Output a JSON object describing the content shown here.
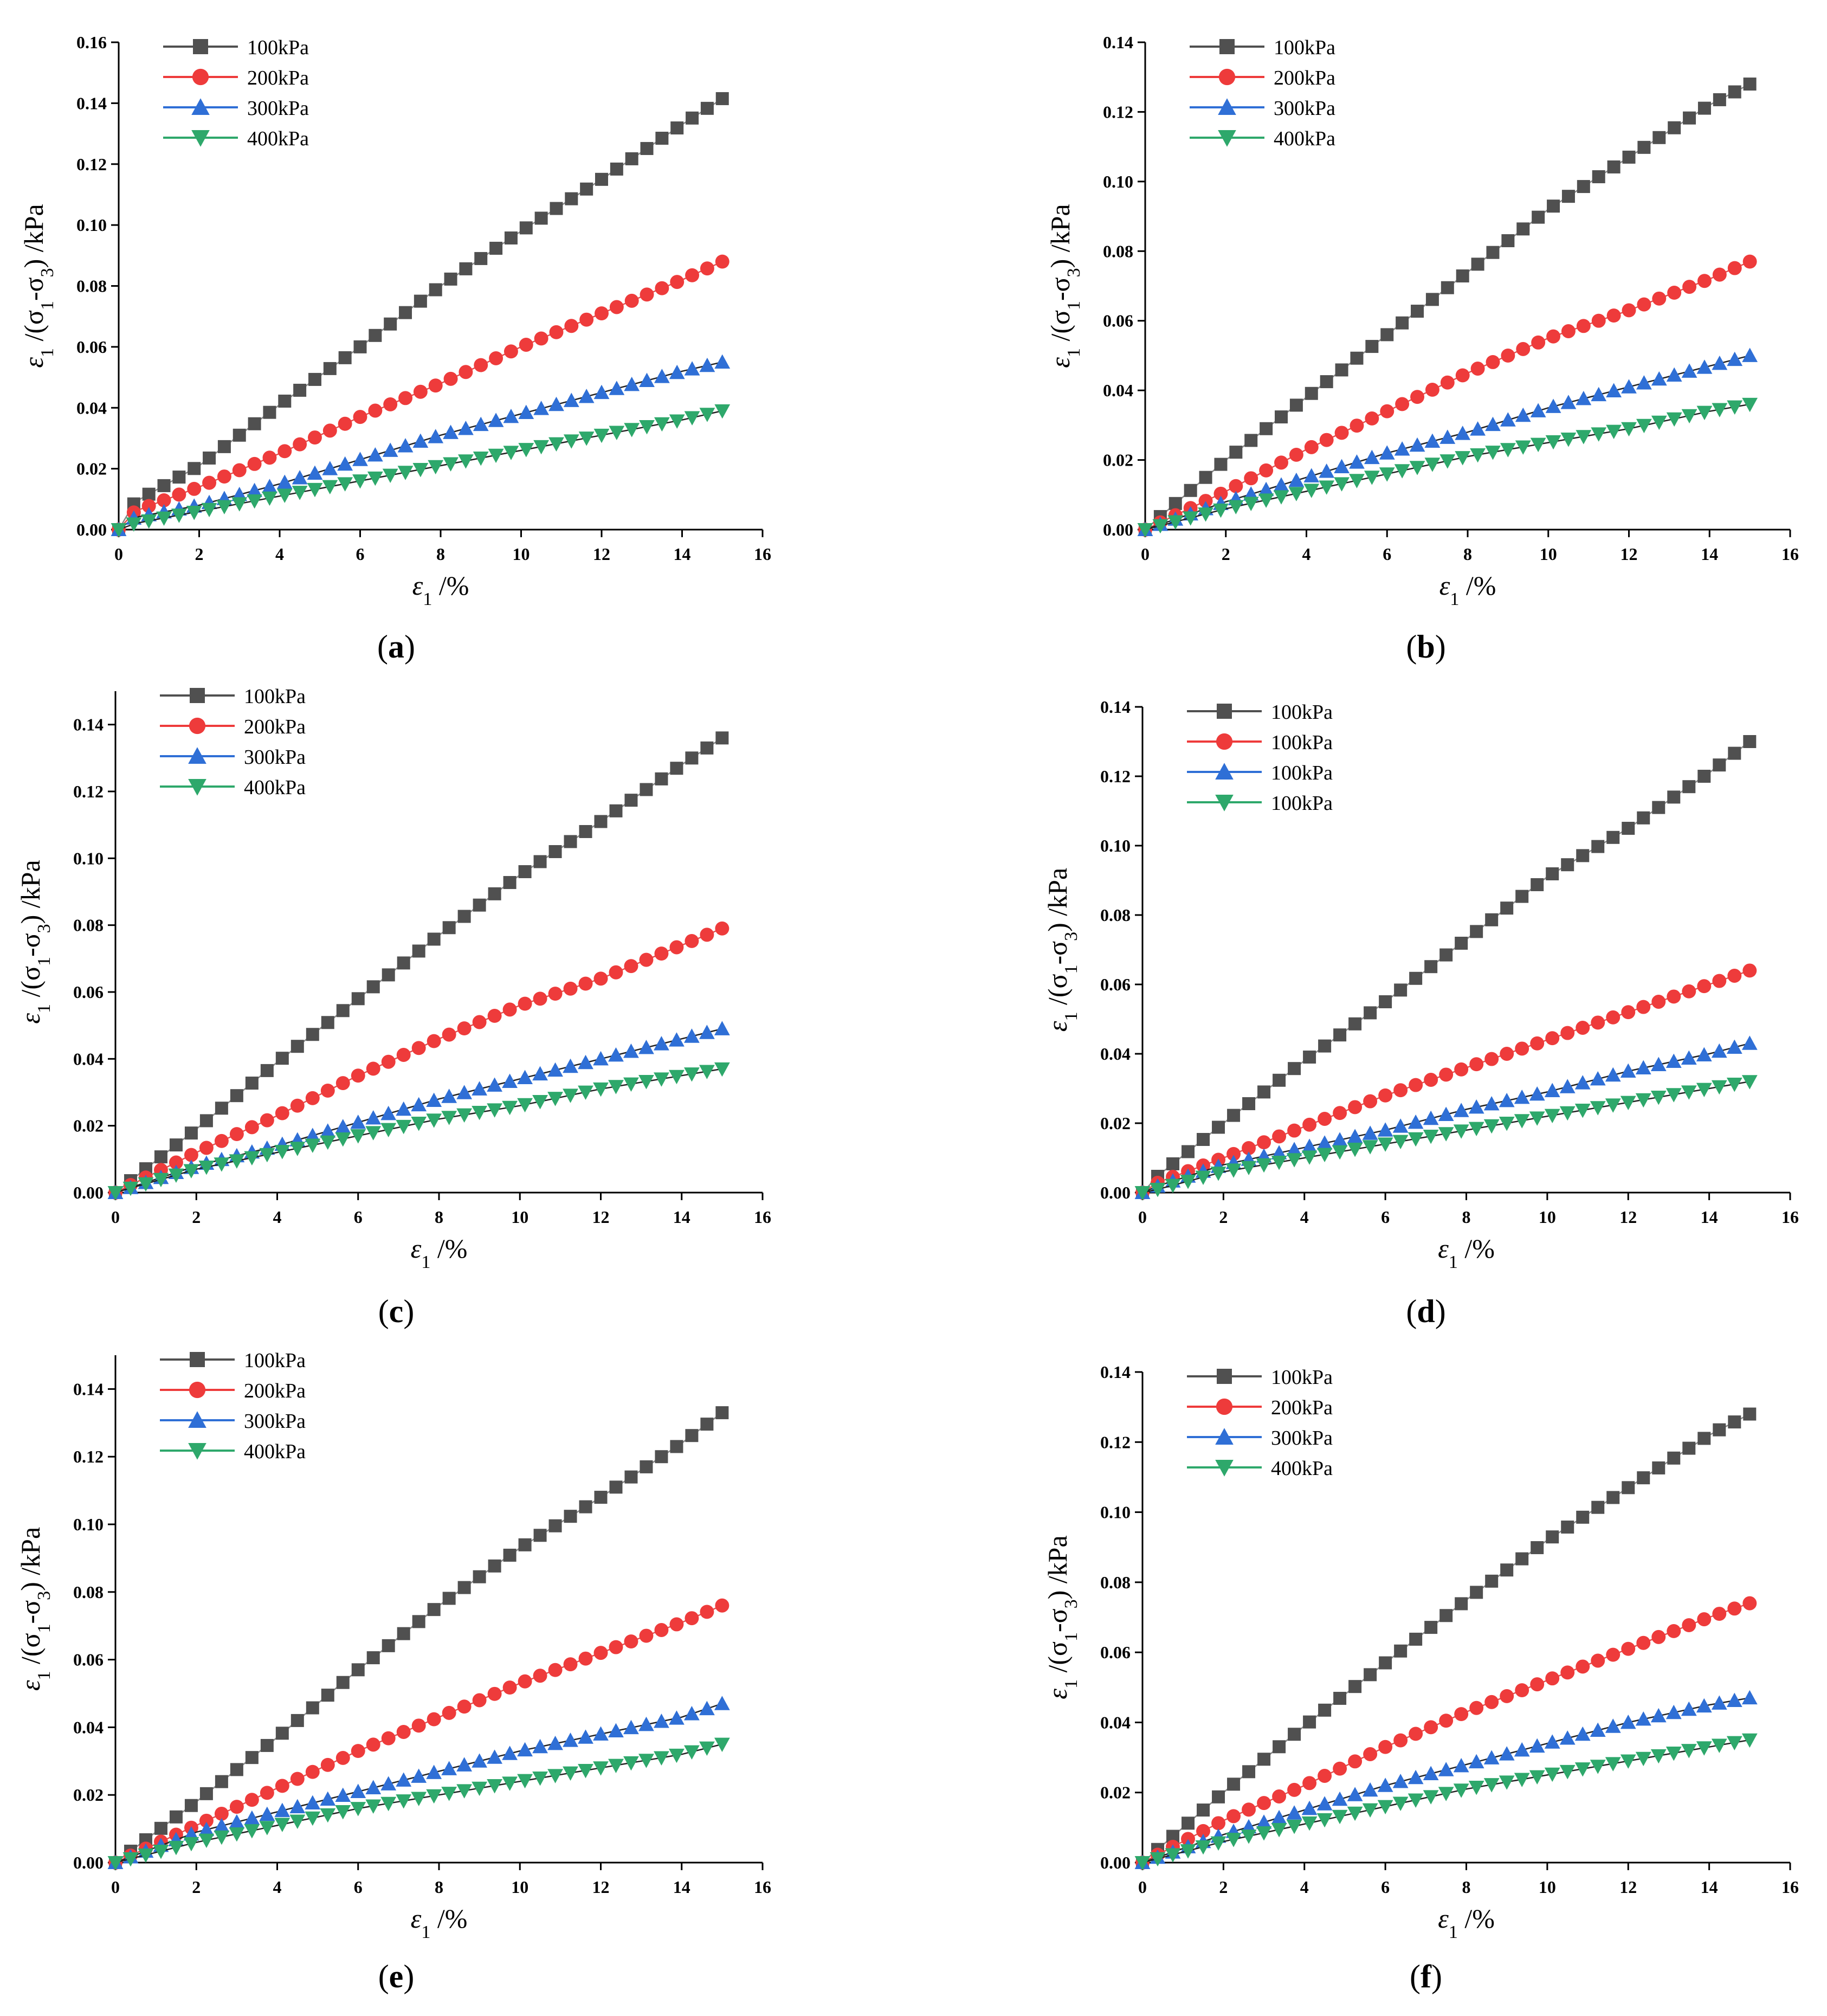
{
  "figure": {
    "panels": [
      {
        "label": "a"
      },
      {
        "label": "b"
      },
      {
        "label": "c"
      },
      {
        "label": "d"
      },
      {
        "label": "e"
      },
      {
        "label": "f"
      }
    ]
  },
  "style": {
    "series_colors": [
      "#505050",
      "#ee3b3b",
      "#2f6fd6",
      "#2ea86b"
    ],
    "fit_colors": [
      "#888888",
      "#e05050",
      "#222222",
      "#222222"
    ],
    "marker_shapes": [
      "square",
      "circle",
      "triangle-up",
      "triangle-down"
    ],
    "axis_color": "#000000"
  },
  "chart_data": [
    {
      "type": "scatter",
      "panel_label": "(a)",
      "xlabel": "ε1 /%",
      "ylabel": "ε1 /(σ1-σ3) /kPa",
      "xlim": [
        0,
        16
      ],
      "ylim": [
        0,
        0.16
      ],
      "xticks": [
        "0",
        "2",
        "4",
        "6",
        "8",
        "10",
        "12",
        "14",
        "16"
      ],
      "yticks": [
        "0.00",
        "0.02",
        "0.04",
        "0.06",
        "0.08",
        "0.10",
        "0.12",
        "0.14",
        "0.16"
      ],
      "legend_position": "top-left",
      "x_range": [
        0,
        15
      ],
      "points_per_series": 41,
      "series": [
        {
          "name": "100kPa",
          "x": [
            0,
            0.4,
            2,
            4,
            6,
            8,
            10,
            12,
            14,
            15
          ],
          "y": [
            0,
            0.009,
            0.021,
            0.041,
            0.06,
            0.08,
            0.098,
            0.115,
            0.133,
            0.1415
          ]
        },
        {
          "name": "200kPa",
          "x": [
            0,
            0.4,
            2,
            4,
            6,
            8,
            10,
            12,
            14,
            15
          ],
          "y": [
            0,
            0.006,
            0.014,
            0.025,
            0.037,
            0.048,
            0.06,
            0.071,
            0.082,
            0.088
          ]
        },
        {
          "name": "300kPa",
          "x": [
            0,
            0.4,
            2,
            4,
            6,
            8,
            10,
            12,
            14,
            15
          ],
          "y": [
            0,
            0.004,
            0.008,
            0.015,
            0.023,
            0.031,
            0.038,
            0.045,
            0.052,
            0.055
          ]
        },
        {
          "name": "400kPa",
          "x": [
            0,
            0.4,
            2,
            4,
            6,
            8,
            10,
            12,
            14,
            15
          ],
          "y": [
            0,
            0.002,
            0.006,
            0.011,
            0.016,
            0.021,
            0.026,
            0.031,
            0.036,
            0.039
          ]
        }
      ]
    },
    {
      "type": "scatter",
      "panel_label": "(b)",
      "xlabel": "ε1 /%",
      "ylabel": "ε1 /(σ1-σ3) /kPa",
      "xlim": [
        0,
        16
      ],
      "ylim": [
        0,
        0.14
      ],
      "xticks": [
        "0",
        "2",
        "4",
        "6",
        "8",
        "10",
        "12",
        "14",
        "16"
      ],
      "yticks": [
        "0.00",
        "0.02",
        "0.04",
        "0.06",
        "0.08",
        "0.10",
        "0.12",
        "0.14"
      ],
      "legend_position": "top-left",
      "x_range": [
        0,
        15
      ],
      "points_per_series": 41,
      "series": [
        {
          "name": "100kPa",
          "x": [
            0,
            2,
            4,
            6,
            8,
            10,
            12,
            14,
            15
          ],
          "y": [
            0,
            0.02,
            0.038,
            0.056,
            0.074,
            0.092,
            0.107,
            0.122,
            0.128
          ]
        },
        {
          "name": "200kPa",
          "x": [
            0,
            2,
            4,
            6,
            8,
            10,
            12,
            14,
            15
          ],
          "y": [
            0,
            0.011,
            0.023,
            0.034,
            0.045,
            0.055,
            0.063,
            0.072,
            0.077
          ]
        },
        {
          "name": "300kPa",
          "x": [
            0,
            2,
            4,
            6,
            8,
            10,
            12,
            14,
            15
          ],
          "y": [
            0,
            0.008,
            0.015,
            0.022,
            0.028,
            0.035,
            0.041,
            0.047,
            0.05
          ]
        },
        {
          "name": "400kPa",
          "x": [
            0,
            2,
            4,
            6,
            8,
            10,
            12,
            14,
            15
          ],
          "y": [
            0,
            0.006,
            0.011,
            0.016,
            0.021,
            0.025,
            0.029,
            0.034,
            0.036
          ]
        }
      ]
    },
    {
      "type": "scatter",
      "panel_label": "(c)",
      "xlabel": "ε1 /%",
      "ylabel": "ε1 /(σ1-σ3) /kPa",
      "xlim": [
        0,
        16
      ],
      "ylim": [
        0,
        0.15
      ],
      "xticks": [
        "0",
        "2",
        "4",
        "6",
        "8",
        "10",
        "12",
        "14",
        "16"
      ],
      "yticks": [
        "0.00",
        "0.02",
        "0.04",
        "0.06",
        "0.08",
        "0.10",
        "0.12",
        "0.14"
      ],
      "legend_position": "top-left",
      "x_range": [
        0,
        15
      ],
      "points_per_series": 41,
      "series": [
        {
          "name": "100kPa",
          "x": [
            0,
            2,
            4,
            6,
            8,
            10,
            12,
            14,
            15
          ],
          "y": [
            0,
            0.019,
            0.039,
            0.058,
            0.077,
            0.095,
            0.111,
            0.128,
            0.136
          ]
        },
        {
          "name": "200kPa",
          "x": [
            0,
            2,
            4,
            6,
            8,
            10,
            12,
            14,
            15
          ],
          "y": [
            0,
            0.012,
            0.023,
            0.035,
            0.046,
            0.056,
            0.064,
            0.074,
            0.079
          ]
        },
        {
          "name": "300kPa",
          "x": [
            0,
            2,
            4,
            6,
            8,
            10,
            12,
            14,
            15
          ],
          "y": [
            0,
            0.008,
            0.014,
            0.021,
            0.028,
            0.034,
            0.04,
            0.046,
            0.049
          ]
        },
        {
          "name": "400kPa",
          "x": [
            0,
            2,
            4,
            6,
            8,
            10,
            12,
            14,
            15
          ],
          "y": [
            0,
            0.007,
            0.012,
            0.017,
            0.022,
            0.026,
            0.031,
            0.035,
            0.037
          ]
        }
      ]
    },
    {
      "type": "scatter",
      "panel_label": "(d)",
      "xlabel": "ε1 /%",
      "ylabel": "ε1 /(σ1-σ3) /kPa",
      "xlim": [
        0,
        16
      ],
      "ylim": [
        0,
        0.14
      ],
      "xticks": [
        "0",
        "2",
        "4",
        "6",
        "8",
        "10",
        "12",
        "14",
        "16"
      ],
      "yticks": [
        "0.00",
        "0.02",
        "0.04",
        "0.06",
        "0.08",
        "0.10",
        "0.12",
        "0.14"
      ],
      "legend_position": "top-left",
      "x_range": [
        0,
        15
      ],
      "points_per_series": 41,
      "series": [
        {
          "name": "100kPa",
          "x": [
            0,
            0.4,
            2,
            4,
            6,
            8,
            10,
            12,
            14,
            15
          ],
          "y": [
            0,
            0.005,
            0.02,
            0.038,
            0.055,
            0.073,
            0.091,
            0.105,
            0.121,
            0.13
          ]
        },
        {
          "name": "100kPa",
          "x": [
            0,
            0.4,
            2,
            4,
            6,
            8,
            10,
            12,
            14,
            15
          ],
          "y": [
            0,
            0.003,
            0.01,
            0.019,
            0.028,
            0.036,
            0.044,
            0.052,
            0.06,
            0.064
          ]
        },
        {
          "name": "100kPa",
          "x": [
            0,
            0.4,
            2,
            4,
            6,
            8,
            10,
            12,
            14,
            15
          ],
          "y": [
            0,
            0.002,
            0.008,
            0.013,
            0.018,
            0.024,
            0.029,
            0.035,
            0.04,
            0.043
          ]
        },
        {
          "name": "100kPa",
          "x": [
            0,
            0.4,
            2,
            4,
            6,
            8,
            10,
            12,
            14,
            15
          ],
          "y": [
            0,
            0.001,
            0.006,
            0.01,
            0.014,
            0.018,
            0.022,
            0.026,
            0.03,
            0.032
          ]
        }
      ]
    },
    {
      "type": "scatter",
      "panel_label": "(e)",
      "xlabel": "ε1 /%",
      "ylabel": "ε1 /(σ1-σ3) /kPa",
      "xlim": [
        0,
        16
      ],
      "ylim": [
        0,
        0.15
      ],
      "xticks": [
        "0",
        "2",
        "4",
        "6",
        "8",
        "10",
        "12",
        "14",
        "16"
      ],
      "yticks": [
        "0.00",
        "0.02",
        "0.04",
        "0.06",
        "0.08",
        "0.10",
        "0.12",
        "0.14"
      ],
      "legend_position": "top-left",
      "x_range": [
        0,
        15
      ],
      "points_per_series": 41,
      "series": [
        {
          "name": "100kPa",
          "x": [
            0,
            2,
            4,
            6,
            8,
            10,
            12,
            14,
            15
          ],
          "y": [
            0,
            0.018,
            0.037,
            0.057,
            0.076,
            0.093,
            0.108,
            0.124,
            0.133
          ]
        },
        {
          "name": "200kPa",
          "x": [
            0,
            2,
            4,
            6,
            8,
            10,
            12,
            14,
            15
          ],
          "y": [
            0,
            0.011,
            0.022,
            0.033,
            0.043,
            0.053,
            0.062,
            0.071,
            0.076
          ]
        },
        {
          "name": "300kPa",
          "x": [
            0,
            2,
            4,
            6,
            8,
            10,
            12,
            14,
            15
          ],
          "y": [
            0,
            0.009,
            0.015,
            0.021,
            0.027,
            0.033,
            0.038,
            0.043,
            0.047
          ]
        },
        {
          "name": "400kPa",
          "x": [
            0,
            2,
            4,
            6,
            8,
            10,
            12,
            14,
            15
          ],
          "y": [
            0,
            0.006,
            0.011,
            0.016,
            0.02,
            0.024,
            0.028,
            0.032,
            0.035
          ]
        }
      ]
    },
    {
      "type": "scatter",
      "panel_label": "(f)",
      "xlabel": "ε1 /%",
      "ylabel": "ε1 /(σ1-σ3) /kPa",
      "xlim": [
        0,
        16
      ],
      "ylim": [
        0,
        0.14
      ],
      "xticks": [
        "0",
        "2",
        "4",
        "6",
        "8",
        "10",
        "12",
        "14",
        "16"
      ],
      "yticks": [
        "0.00",
        "0.02",
        "0.04",
        "0.06",
        "0.08",
        "0.10",
        "0.12",
        "0.14"
      ],
      "legend_position": "top-left",
      "x_range": [
        0,
        15
      ],
      "points_per_series": 41,
      "series": [
        {
          "name": "100kPa",
          "x": [
            0,
            2,
            4,
            6,
            8,
            10,
            12,
            14,
            15
          ],
          "y": [
            0,
            0.02,
            0.039,
            0.057,
            0.075,
            0.092,
            0.107,
            0.122,
            0.128
          ]
        },
        {
          "name": "200kPa",
          "x": [
            0,
            2,
            4,
            6,
            8,
            10,
            12,
            14,
            15
          ],
          "y": [
            0,
            0.012,
            0.022,
            0.033,
            0.043,
            0.052,
            0.061,
            0.07,
            0.074
          ]
        },
        {
          "name": "300kPa",
          "x": [
            0,
            2,
            4,
            6,
            8,
            10,
            12,
            14,
            15
          ],
          "y": [
            0,
            0.008,
            0.015,
            0.022,
            0.028,
            0.034,
            0.04,
            0.045,
            0.047
          ]
        },
        {
          "name": "400kPa",
          "x": [
            0,
            2,
            4,
            6,
            8,
            10,
            12,
            14,
            15
          ],
          "y": [
            0,
            0.006,
            0.011,
            0.016,
            0.021,
            0.025,
            0.029,
            0.033,
            0.035
          ]
        }
      ]
    }
  ]
}
